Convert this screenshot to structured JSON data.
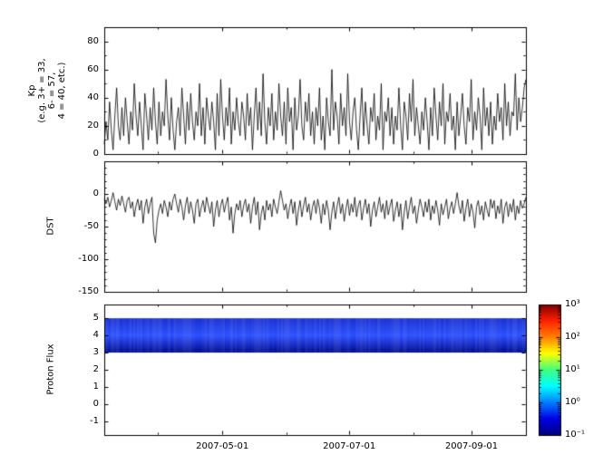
{
  "figure": {
    "bg": "#ffffff",
    "frame_color": "#000000"
  },
  "xaxis": {
    "tick_labels": [
      "2007-05-01",
      "2007-07-01",
      "2007-09-01"
    ],
    "major_fracs": [
      0.28,
      0.581,
      0.871
    ],
    "minor_fracs": [
      0.127,
      0.433,
      0.734
    ]
  },
  "colorbar": {
    "labels": [
      "10³",
      "10²",
      "10¹",
      "10⁰",
      "10⁻¹"
    ],
    "tick_exps": [
      3,
      2,
      1,
      0,
      -1
    ],
    "colors_bottom_to_top": [
      "#00007f",
      "#0000e6",
      "#0080ff",
      "#00ffff",
      "#40ff80",
      "#ffff00",
      "#ff8000",
      "#ff2000",
      "#800000"
    ]
  },
  "chart_data": [
    {
      "type": "line",
      "ylabel": "Kp\n(e.g. 3+ = 33,\n6- = 57,\n4 = 40, etc.)",
      "ylim": [
        0,
        90
      ],
      "yticks": [
        0,
        20,
        40,
        60,
        80
      ],
      "yminor_step": 10,
      "x_range": [
        "2007-03-05",
        "2007-09-26"
      ],
      "grid": false,
      "series": [
        {
          "name": "Kp",
          "color": "#000000",
          "values": [
            7,
            23,
            10,
            37,
            17,
            3,
            27,
            47,
            20,
            10,
            33,
            13,
            40,
            23,
            7,
            30,
            17,
            50,
            27,
            13,
            37,
            20,
            3,
            43,
            27,
            10,
            33,
            17,
            47,
            23,
            7,
            37,
            13,
            30,
            20,
            53,
            27,
            10,
            40,
            17,
            3,
            23,
            33,
            13,
            47,
            27,
            7,
            37,
            17,
            43,
            23,
            10,
            30,
            20,
            50,
            13,
            33,
            7,
            40,
            27,
            17,
            37,
            23,
            3,
            43,
            13,
            53,
            27,
            10,
            33,
            20,
            47,
            7,
            30,
            17,
            40,
            23,
            13,
            37,
            27,
            10,
            43,
            20,
            33,
            3,
            27,
            47,
            17,
            37,
            13,
            57,
            23,
            7,
            33,
            20,
            43,
            10,
            30,
            17,
            50,
            27,
            13,
            37,
            7,
            47,
            23,
            33,
            3,
            40,
            17,
            27,
            53,
            20,
            10,
            37,
            23,
            43,
            13,
            30,
            7,
            33,
            20,
            47,
            10,
            27,
            3,
            40,
            23,
            13,
            60,
            17,
            37,
            27,
            7,
            43,
            20,
            33,
            13,
            57,
            23,
            10,
            30,
            40,
            17,
            3,
            27,
            47,
            13,
            37,
            20,
            7,
            33,
            23,
            43,
            10,
            27,
            17,
            50,
            3,
            30,
            23,
            40,
            13,
            33,
            7,
            27,
            17,
            47,
            20,
            3,
            37,
            27,
            10,
            43,
            23,
            53,
            13,
            33,
            20,
            7,
            30,
            17,
            40,
            23,
            3,
            33,
            13,
            47,
            27,
            10,
            37,
            20,
            50,
            7,
            30,
            23,
            43,
            17,
            27,
            3,
            37,
            13,
            27,
            43,
            20,
            7,
            33,
            23,
            53,
            10,
            30,
            17,
            40,
            27,
            3,
            47,
            20,
            33,
            13,
            37,
            7,
            27,
            17,
            43,
            23,
            33,
            10,
            50,
            20,
            37,
            13,
            30,
            27,
            57,
            17,
            40,
            23,
            33,
            47,
            53
          ]
        }
      ]
    },
    {
      "type": "line",
      "ylabel": "DST",
      "ylim": [
        -150,
        50
      ],
      "yticks": [
        0,
        -50,
        -100,
        -150
      ],
      "yminor_step": 10,
      "x_range": [
        "2007-03-05",
        "2007-09-26"
      ],
      "grid": false,
      "series": [
        {
          "name": "DST",
          "color": "#000000",
          "values": [
            -8,
            -15,
            -5,
            -20,
            -10,
            2,
            -12,
            -25,
            -8,
            -18,
            -3,
            -15,
            -28,
            -10,
            -5,
            -22,
            -12,
            -35,
            -18,
            -8,
            -25,
            -10,
            -45,
            -20,
            -8,
            -30,
            -15,
            -5,
            -60,
            -75,
            -40,
            -25,
            -15,
            -30,
            -10,
            -20,
            -35,
            -12,
            -25,
            -8,
            0,
            -15,
            -28,
            -8,
            -20,
            -40,
            -18,
            -5,
            -30,
            -12,
            -25,
            -45,
            -15,
            -8,
            -35,
            -20,
            -10,
            -28,
            -5,
            -18,
            -30,
            -12,
            -50,
            -25,
            -10,
            -35,
            -18,
            -8,
            -28,
            -15,
            -5,
            -40,
            -20,
            -60,
            -30,
            -15,
            -25,
            -10,
            -35,
            -18,
            -8,
            -28,
            -15,
            -45,
            -20,
            -5,
            -32,
            -12,
            -55,
            -30,
            -18,
            -40,
            -10,
            -25,
            -15,
            -35,
            -8,
            -20,
            -30,
            -12,
            5,
            -10,
            -25,
            -15,
            -38,
            -20,
            -8,
            -30,
            -12,
            -48,
            -25,
            -10,
            -35,
            -18,
            -5,
            -28,
            -15,
            -40,
            -20,
            -10,
            -30,
            -8,
            -22,
            -45,
            -15,
            -32,
            -10,
            -25,
            -55,
            -28,
            -12,
            -38,
            -18,
            -5,
            -30,
            -15,
            -42,
            -22,
            -8,
            -33,
            -15,
            -28,
            -5,
            -35,
            -18,
            -10,
            -40,
            -22,
            -8,
            -30,
            -15,
            -50,
            -25,
            -12,
            -35,
            -20,
            -5,
            -28,
            -15,
            -38,
            -10,
            -32,
            -18,
            -8,
            -42,
            -25,
            -12,
            -35,
            -15,
            -55,
            -28,
            -10,
            -38,
            -20,
            -5,
            -30,
            -18,
            -45,
            -25,
            -8,
            -20,
            -35,
            -12,
            -28,
            -8,
            -40,
            -18,
            -30,
            -10,
            -25,
            -48,
            -15,
            -32,
            -20,
            -8,
            -38,
            -22,
            -12,
            -30,
            -15,
            2,
            -18,
            -30,
            -10,
            -42,
            -22,
            -8,
            -35,
            -15,
            -28,
            -52,
            -20,
            -10,
            -32,
            -18,
            -40,
            -12,
            -25,
            -35,
            -8,
            -22,
            -10,
            -38,
            -18,
            -30,
            -8,
            -45,
            -20,
            -12,
            -35,
            -15,
            -28,
            -8,
            -40,
            -18,
            -30,
            -10,
            -22,
            -15,
            -5
          ]
        }
      ]
    },
    {
      "type": "heatmap",
      "ylabel": "Proton Flux",
      "ylim": [
        -1.8,
        5.8
      ],
      "yticks": [
        5,
        4,
        3,
        2,
        1,
        0,
        -1
      ],
      "x_range": [
        "2007-03-05",
        "2007-09-26"
      ],
      "grid": false,
      "band": {
        "y_min": 3,
        "y_max": 5,
        "gradient_top_to_bottom": [
          "#1a2fd0",
          "#2b50ff",
          "#000a90"
        ]
      }
    }
  ]
}
